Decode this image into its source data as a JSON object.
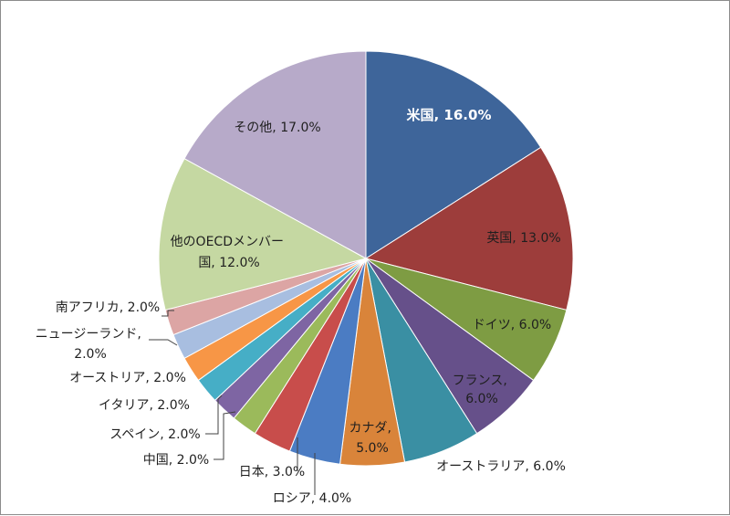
{
  "chart_data": {
    "type": "pie",
    "title": "",
    "slices": [
      {
        "name": "米国",
        "value": 16.0,
        "label": "米国, 16.0%",
        "color": "#3E659A"
      },
      {
        "name": "英国",
        "value": 13.0,
        "label": "英国, 13.0%",
        "color": "#9D3D3B"
      },
      {
        "name": "ドイツ",
        "value": 6.0,
        "label": "ドイツ, 6.0%",
        "color": "#7E9C43"
      },
      {
        "name": "フランス",
        "value": 6.0,
        "label": "フランス, 6.0%",
        "color": "#66508A"
      },
      {
        "name": "オーストラリア",
        "value": 6.0,
        "label": "オーストラリア, 6.0%",
        "color": "#3A8FA3"
      },
      {
        "name": "カナダ",
        "value": 5.0,
        "label": "カナダ, 5.0%",
        "color": "#D9843A"
      },
      {
        "name": "ロシア",
        "value": 4.0,
        "label": "ロシア, 4.0%",
        "color": "#4B7CC3"
      },
      {
        "name": "日本",
        "value": 3.0,
        "label": "日本, 3.0%",
        "color": "#C84D4B"
      },
      {
        "name": "中国",
        "value": 2.0,
        "label": "中国, 2.0%",
        "color": "#9BBA5B"
      },
      {
        "name": "スペイン",
        "value": 2.0,
        "label": "スペイン, 2.0%",
        "color": "#7E65A3"
      },
      {
        "name": "イタリア",
        "value": 2.0,
        "label": "イタリア, 2.0%",
        "color": "#46AEC6"
      },
      {
        "name": "オーストリア",
        "value": 2.0,
        "label": "オーストリア, 2.0%",
        "color": "#F79646"
      },
      {
        "name": "ニュージーランド",
        "value": 2.0,
        "label": "ニュージーランド, 2.0%",
        "color": "#A8BEE0"
      },
      {
        "name": "南アフリカ",
        "value": 2.0,
        "label": "南アフリカ, 2.0%",
        "color": "#DCA5A4"
      },
      {
        "name": "他のOECDメンバー国",
        "value": 12.0,
        "label": "他のOECDメンバー国, 12.0%",
        "color": "#C5D8A2"
      },
      {
        "name": "その他",
        "value": 17.0,
        "label": "その他, 17.0%",
        "color": "#B7AAC9"
      }
    ]
  }
}
